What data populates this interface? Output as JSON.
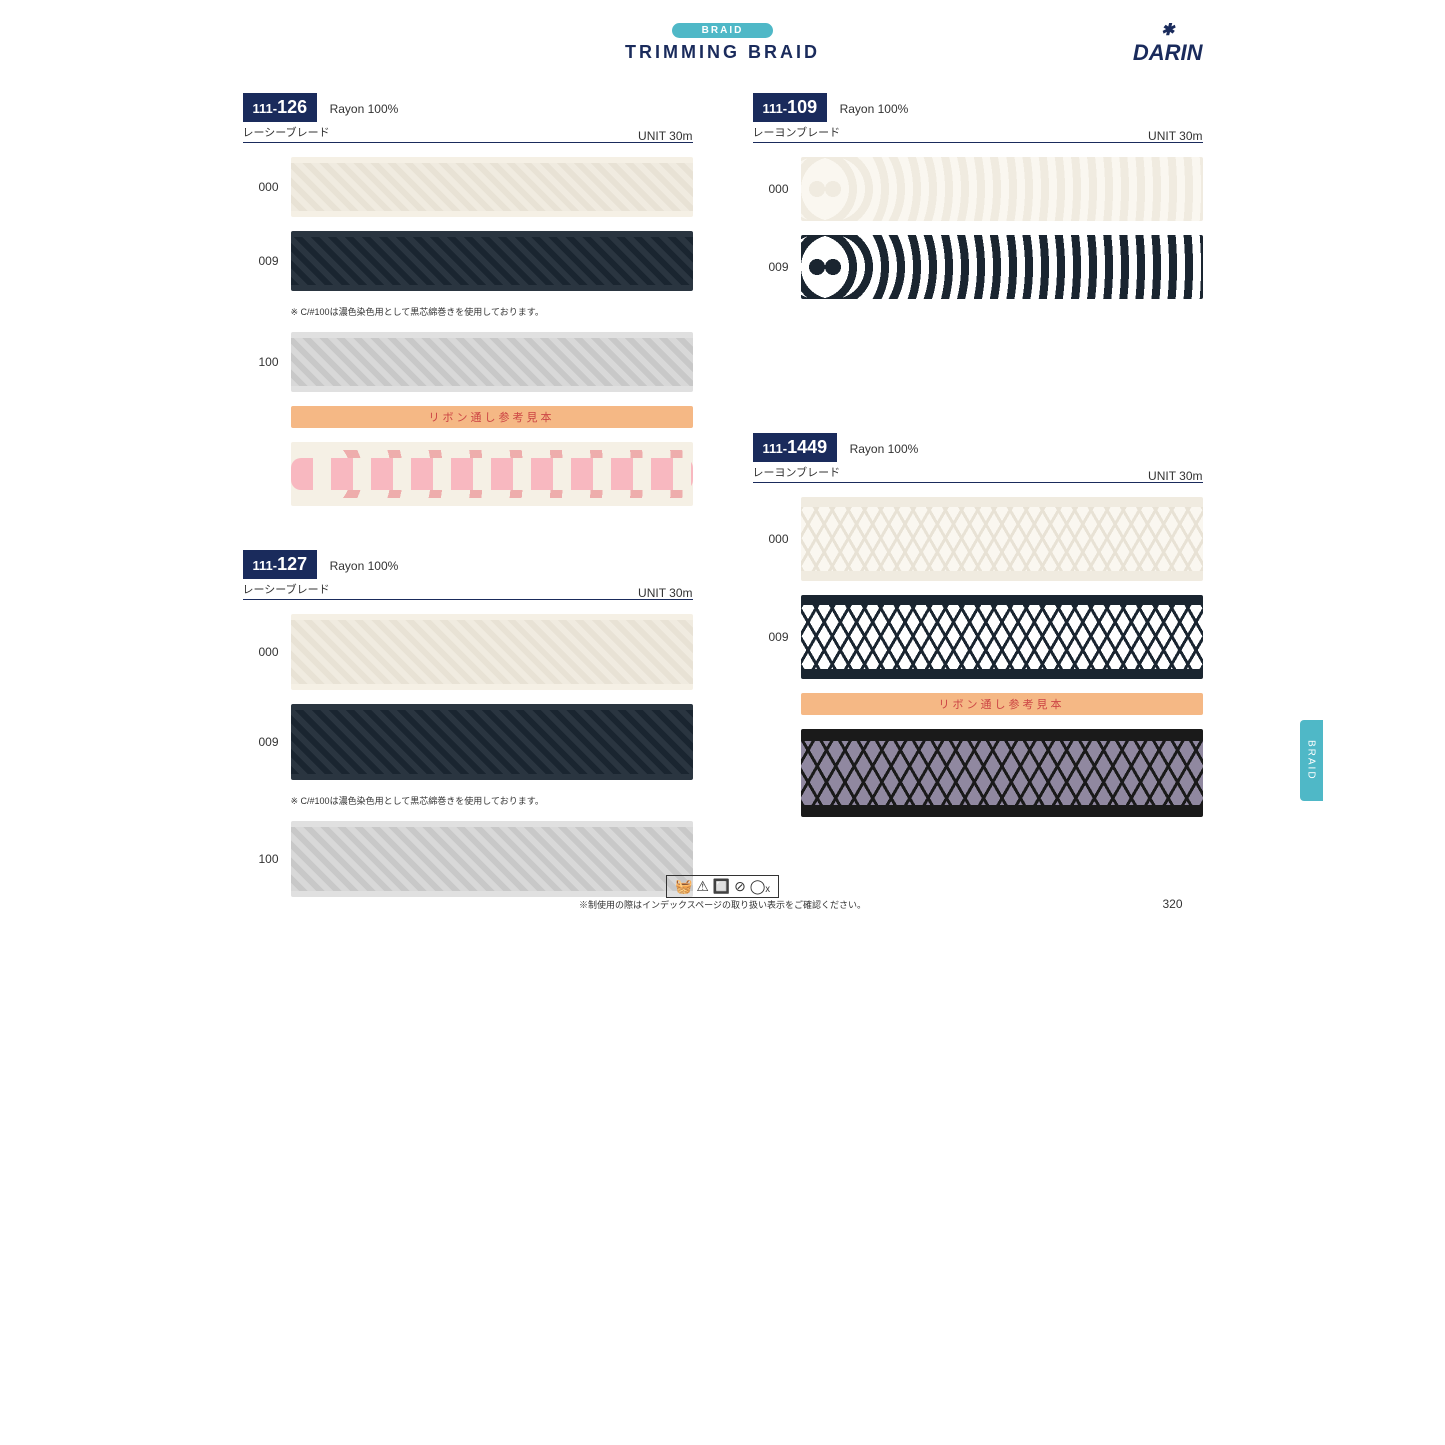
{
  "header": {
    "badge": "BRAID",
    "title": "TRIMMING  BRAID",
    "brand": "DARIN"
  },
  "side_tab": "BRAID",
  "page_number": "320",
  "footer_note": "※制使用の際はインデックスページの取り扱い表示をご確認ください。",
  "ribbon_sample_label": "リボン通し参考見本",
  "dye_note": "※ C/#100は濃色染色用として黒芯綿巻きを使用しております。",
  "products": [
    {
      "code_prefix": "111-",
      "code_main": "126",
      "material": "Rayon 100%",
      "jp_name": "レーシーブレード",
      "unit": "UNIT 30m",
      "swatches": [
        {
          "code": "000",
          "class": "braid-white",
          "height": "normal"
        },
        {
          "code": "009",
          "class": "braid-black",
          "height": "normal"
        },
        {
          "code": "100",
          "class": "braid-silver",
          "height": "normal",
          "note_before": true
        }
      ],
      "ribbon_sample": {
        "class": "braid-pink",
        "height": "normal"
      }
    },
    {
      "code_prefix": "111-",
      "code_main": "127",
      "material": "Rayon 100%",
      "jp_name": "レーシーブレード",
      "unit": "UNIT 30m",
      "swatches": [
        {
          "code": "000",
          "class": "braid-white",
          "height": "tall"
        },
        {
          "code": "009",
          "class": "braid-black",
          "height": "tall"
        },
        {
          "code": "100",
          "class": "braid-silver",
          "height": "tall",
          "note_before": true
        }
      ]
    },
    {
      "code_prefix": "111-",
      "code_main": "109",
      "material": "Rayon 100%",
      "jp_name": "レーヨンブレード",
      "unit": "UNIT 30m",
      "swatches": [
        {
          "code": "000",
          "class": "braid-loop-white",
          "height": "tall"
        },
        {
          "code": "009",
          "class": "braid-loop-black",
          "height": "tall"
        }
      ]
    },
    {
      "code_prefix": "111-",
      "code_main": "1449",
      "material": "Rayon 100%",
      "jp_name": "レーヨンブレード",
      "unit": "UNIT 30m",
      "swatches": [
        {
          "code": "000",
          "class": "braid-cross-white",
          "height": "tall"
        },
        {
          "code": "009",
          "class": "braid-cross-black",
          "height": "tall"
        }
      ],
      "ribbon_sample": {
        "class": "braid-purple",
        "height": "tall"
      }
    }
  ]
}
